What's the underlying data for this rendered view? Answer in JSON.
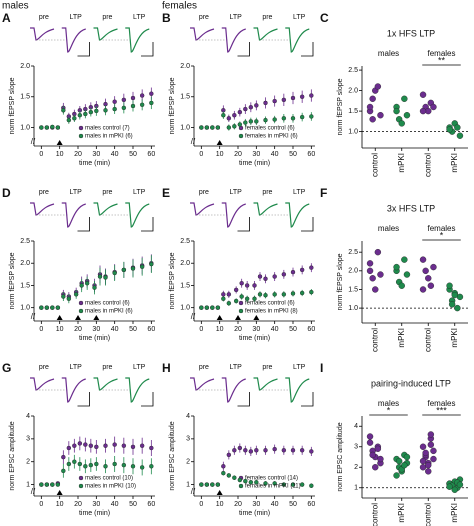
{
  "chart_data": [
    {
      "type": "timecourse",
      "panel": "A",
      "group_label": "males",
      "trace_labels": [
        "pre",
        "LTP",
        "pre",
        "LTP"
      ],
      "xlabel": "time (min)",
      "ylabel": "norm fEPSP slope",
      "xlim": [
        -4,
        62
      ],
      "xticks": [
        0,
        10,
        20,
        30,
        40,
        50,
        60
      ],
      "ylim": [
        0.7,
        2.0
      ],
      "yticks": [
        {
          "value": 1,
          "label": "1.0"
        },
        1.5,
        {
          "value": 2,
          "label": "2.0"
        }
      ],
      "stim_x": [
        10
      ],
      "x": [
        0,
        3,
        6,
        9,
        12,
        15,
        18,
        21,
        24,
        27,
        30,
        35,
        40,
        45,
        50,
        55,
        60
      ],
      "series": [
        {
          "name": "males control (7)",
          "color": "#6b2d8e",
          "values": [
            1.0,
            1.0,
            1.0,
            1.0,
            1.32,
            1.18,
            1.22,
            1.28,
            1.3,
            1.33,
            1.35,
            1.38,
            1.42,
            1.45,
            1.48,
            1.52,
            1.55
          ],
          "errors": [
            0.03,
            0.03,
            0.03,
            0.03,
            0.08,
            0.06,
            0.07,
            0.07,
            0.08,
            0.08,
            0.08,
            0.09,
            0.09,
            0.1,
            0.1,
            0.1,
            0.1
          ]
        },
        {
          "name": "males in mPKI (6)",
          "color": "#1f8a4c",
          "values": [
            1.0,
            1.0,
            1.01,
            1.0,
            1.28,
            1.12,
            1.15,
            1.2,
            1.22,
            1.25,
            1.27,
            1.28,
            1.3,
            1.32,
            1.35,
            1.37,
            1.4
          ],
          "errors": [
            0.03,
            0.03,
            0.03,
            0.03,
            0.07,
            0.06,
            0.06,
            0.07,
            0.07,
            0.07,
            0.08,
            0.08,
            0.08,
            0.09,
            0.09,
            0.09,
            0.1
          ]
        }
      ]
    },
    {
      "type": "timecourse",
      "panel": "B",
      "group_label": "females",
      "trace_labels": [
        "pre",
        "LTP",
        "pre",
        "LTP"
      ],
      "xlabel": "time (min)",
      "ylabel": "norm fEPSP slope",
      "xlim": [
        -4,
        62
      ],
      "xticks": [
        0,
        10,
        20,
        30,
        40,
        50,
        60
      ],
      "ylim": [
        0.7,
        2.0
      ],
      "yticks": [
        {
          "value": 1,
          "label": "1.0"
        },
        1.5,
        {
          "value": 2,
          "label": "2.0"
        }
      ],
      "stim_x": [
        10
      ],
      "x": [
        0,
        3,
        6,
        9,
        12,
        15,
        18,
        21,
        24,
        27,
        30,
        35,
        40,
        45,
        50,
        55,
        60
      ],
      "series": [
        {
          "name": "females control (6)",
          "color": "#6b2d8e",
          "values": [
            1.0,
            1.0,
            1.0,
            1.0,
            1.28,
            1.15,
            1.2,
            1.25,
            1.3,
            1.33,
            1.36,
            1.4,
            1.43,
            1.45,
            1.48,
            1.5,
            1.52
          ],
          "errors": [
            0.03,
            0.03,
            0.03,
            0.03,
            0.08,
            0.06,
            0.07,
            0.07,
            0.08,
            0.08,
            0.08,
            0.09,
            0.09,
            0.1,
            0.1,
            0.1,
            0.1
          ]
        },
        {
          "name": "females in mPKI (6)",
          "color": "#1f8a4c",
          "values": [
            1.0,
            1.0,
            1.0,
            1.0,
            1.2,
            1.0,
            1.02,
            1.05,
            1.08,
            1.1,
            1.1,
            1.12,
            1.13,
            1.15,
            1.15,
            1.17,
            1.18
          ],
          "errors": [
            0.03,
            0.03,
            0.03,
            0.03,
            0.06,
            0.05,
            0.05,
            0.05,
            0.06,
            0.06,
            0.06,
            0.06,
            0.06,
            0.07,
            0.07,
            0.07,
            0.07
          ]
        }
      ]
    },
    {
      "type": "dots",
      "panel": "C",
      "title": "1x HFS LTP",
      "ylabel": "norm fEPSP slope",
      "ylim": [
        0.6,
        2.6
      ],
      "yticks": [
        {
          "value": 1,
          "label": "1.0"
        },
        1.5,
        {
          "value": 2,
          "label": "2.0"
        },
        2.5
      ],
      "reference_line": 1,
      "categories": [
        "control",
        "mPKI",
        "control",
        "mPKI"
      ],
      "colors": [
        "#6b2d8e",
        "#1f8a4c",
        "#6b2d8e",
        "#1f8a4c"
      ],
      "groups": [
        {
          "label": "males"
        },
        {
          "label": "females",
          "significance": "**"
        }
      ],
      "values": [
        [
          1.5,
          1.8,
          2.0,
          2.1,
          1.4,
          1.6,
          1.3
        ],
        [
          1.6,
          1.3,
          1.2,
          1.8,
          1.4,
          1.5
        ],
        [
          1.9,
          1.6,
          1.5,
          1.7,
          1.6,
          1.5
        ],
        [
          1.1,
          1.0,
          1.2,
          1.1,
          0.9,
          1.05
        ]
      ]
    },
    {
      "type": "timecourse",
      "panel": "D",
      "trace_labels": [
        "pre",
        "LTP",
        "pre",
        "LTP"
      ],
      "xlabel": "time (min)",
      "ylabel": "norm fEPSP slope",
      "xlim": [
        -4,
        62
      ],
      "xticks": [
        0,
        10,
        20,
        30,
        40,
        50,
        60
      ],
      "ylim": [
        0.7,
        2.5
      ],
      "yticks": [
        {
          "value": 1,
          "label": "1.0"
        },
        1.5,
        {
          "value": 2,
          "label": "2.0"
        },
        2.5
      ],
      "stim_x": [
        10,
        20,
        30
      ],
      "x": [
        0,
        3,
        6,
        9,
        12,
        15,
        19,
        22,
        25,
        29,
        32,
        35,
        40,
        45,
        50,
        55,
        60
      ],
      "series": [
        {
          "name": "males control (6)",
          "color": "#6b2d8e",
          "values": [
            1.0,
            1.0,
            1.0,
            1.0,
            1.3,
            1.25,
            1.35,
            1.55,
            1.6,
            1.5,
            1.75,
            1.7,
            1.8,
            1.85,
            1.9,
            1.95,
            2.0
          ],
          "errors": [
            0.04,
            0.04,
            0.04,
            0.04,
            0.1,
            0.1,
            0.1,
            0.15,
            0.15,
            0.15,
            0.2,
            0.18,
            0.18,
            0.18,
            0.2,
            0.2,
            0.2
          ]
        },
        {
          "name": "males in mPKI (6)",
          "color": "#1f8a4c",
          "values": [
            1.0,
            1.0,
            1.0,
            1.0,
            1.25,
            1.2,
            1.3,
            1.5,
            1.55,
            1.45,
            1.7,
            1.68,
            1.78,
            1.85,
            1.88,
            1.92,
            1.98
          ],
          "errors": [
            0.04,
            0.04,
            0.04,
            0.04,
            0.1,
            0.1,
            0.1,
            0.15,
            0.15,
            0.15,
            0.2,
            0.18,
            0.18,
            0.18,
            0.2,
            0.2,
            0.2
          ]
        }
      ]
    },
    {
      "type": "timecourse",
      "panel": "E",
      "trace_labels": [
        "pre",
        "LTP",
        "pre",
        "LTP"
      ],
      "xlabel": "time (min)",
      "ylabel": "norm fEPSP slope",
      "xlim": [
        -4,
        62
      ],
      "xticks": [
        0,
        10,
        20,
        30,
        40,
        50,
        60
      ],
      "ylim": [
        0.7,
        2.5
      ],
      "yticks": [
        {
          "value": 1,
          "label": "1.0"
        },
        1.5,
        {
          "value": 2,
          "label": "2.0"
        },
        2.5
      ],
      "stim_x": [
        10,
        20,
        30
      ],
      "x": [
        0,
        3,
        6,
        9,
        12,
        15,
        19,
        22,
        25,
        29,
        32,
        35,
        40,
        45,
        50,
        55,
        60
      ],
      "series": [
        {
          "name": "females control (6)",
          "color": "#6b2d8e",
          "values": [
            1.0,
            1.0,
            1.0,
            1.0,
            1.3,
            1.3,
            1.4,
            1.55,
            1.5,
            1.5,
            1.7,
            1.65,
            1.7,
            1.75,
            1.8,
            1.85,
            1.9
          ],
          "errors": [
            0.03,
            0.03,
            0.03,
            0.03,
            0.08,
            0.08,
            0.08,
            0.1,
            0.1,
            0.1,
            0.1,
            0.1,
            0.1,
            0.1,
            0.1,
            0.1,
            0.1
          ]
        },
        {
          "name": "females in mPKI (8)",
          "color": "#1f8a4c",
          "values": [
            1.0,
            1.0,
            1.0,
            1.0,
            1.2,
            1.1,
            1.15,
            1.25,
            1.2,
            1.2,
            1.3,
            1.28,
            1.3,
            1.3,
            1.32,
            1.33,
            1.35
          ],
          "errors": [
            0.03,
            0.03,
            0.03,
            0.03,
            0.06,
            0.06,
            0.06,
            0.07,
            0.07,
            0.07,
            0.07,
            0.07,
            0.07,
            0.07,
            0.07,
            0.07,
            0.07
          ]
        }
      ]
    },
    {
      "type": "dots",
      "panel": "F",
      "title": "3x HFS LTP",
      "ylabel": "norm fEPSP slope",
      "ylim": [
        0.6,
        2.8
      ],
      "yticks": [
        {
          "value": 1,
          "label": "1.0"
        },
        1.5,
        {
          "value": 2,
          "label": "2.0"
        },
        2.5
      ],
      "reference_line": 1,
      "categories": [
        "control",
        "mPKI",
        "control",
        "mPKI"
      ],
      "colors": [
        "#6b2d8e",
        "#1f8a4c",
        "#6b2d8e",
        "#1f8a4c"
      ],
      "groups": [
        {
          "label": "males"
        },
        {
          "label": "females",
          "significance": "*"
        }
      ],
      "values": [
        [
          2.2,
          1.8,
          1.5,
          2.5,
          1.9,
          2.0
        ],
        [
          2.0,
          1.7,
          1.6,
          2.3,
          1.9,
          2.1
        ],
        [
          2.3,
          2.0,
          1.8,
          1.6,
          2.1,
          1.5
        ],
        [
          1.5,
          1.2,
          1.4,
          1.0,
          1.3,
          1.6,
          1.1,
          1.35
        ]
      ]
    },
    {
      "type": "timecourse",
      "panel": "G",
      "trace_labels": [
        "pre",
        "LTP",
        "pre",
        "LTP"
      ],
      "xlabel": "time (min)",
      "ylabel": "norm EPSC amplitude",
      "xlim": [
        -4,
        62
      ],
      "xticks": [
        0,
        10,
        20,
        30,
        40,
        50,
        60
      ],
      "ylim": [
        0.5,
        4
      ],
      "yticks": [
        1,
        2,
        3,
        4
      ],
      "stim_x": [
        10
      ],
      "x": [
        0,
        3,
        6,
        9,
        12,
        15,
        18,
        21,
        24,
        27,
        30,
        35,
        40,
        45,
        50,
        55,
        60
      ],
      "series": [
        {
          "name": "males control (10)",
          "color": "#6b2d8e",
          "values": [
            1.0,
            1.0,
            1.0,
            1.05,
            2.2,
            2.6,
            2.7,
            2.8,
            2.75,
            2.7,
            2.65,
            2.7,
            2.75,
            2.7,
            2.65,
            2.7,
            2.6
          ],
          "errors": [
            0.05,
            0.05,
            0.05,
            0.05,
            0.3,
            0.3,
            0.3,
            0.3,
            0.3,
            0.3,
            0.3,
            0.3,
            0.35,
            0.35,
            0.35,
            0.35,
            0.35
          ]
        },
        {
          "name": "males in mPKI (10)",
          "color": "#1f8a4c",
          "values": [
            1.0,
            1.0,
            1.0,
            1.0,
            1.6,
            1.9,
            2.0,
            1.9,
            1.8,
            1.85,
            1.9,
            1.8,
            1.9,
            1.85,
            1.8,
            1.75,
            1.8
          ],
          "errors": [
            0.05,
            0.05,
            0.05,
            0.05,
            0.3,
            0.3,
            0.3,
            0.3,
            0.3,
            0.3,
            0.3,
            0.3,
            0.35,
            0.35,
            0.35,
            0.35,
            0.35
          ]
        }
      ]
    },
    {
      "type": "timecourse",
      "panel": "H",
      "trace_labels": [
        "pre",
        "LTP",
        "pre",
        "LTP"
      ],
      "xlabel": "time (min)",
      "ylabel": "norm EPSC amplitude",
      "xlim": [
        -4,
        62
      ],
      "xticks": [
        0,
        10,
        20,
        30,
        40,
        50,
        60
      ],
      "ylim": [
        0.5,
        4
      ],
      "yticks": [
        1,
        2,
        3,
        4
      ],
      "stim_x": [
        10
      ],
      "x": [
        0,
        3,
        6,
        9,
        12,
        15,
        18,
        21,
        24,
        27,
        30,
        35,
        40,
        45,
        50,
        55,
        60
      ],
      "series": [
        {
          "name": "females control (14)",
          "color": "#6b2d8e",
          "values": [
            1.0,
            1.0,
            1.0,
            1.0,
            1.8,
            2.3,
            2.5,
            2.6,
            2.5,
            2.45,
            2.5,
            2.5,
            2.55,
            2.5,
            2.5,
            2.5,
            2.45
          ],
          "errors": [
            0.05,
            0.05,
            0.05,
            0.05,
            0.2,
            0.2,
            0.2,
            0.2,
            0.2,
            0.2,
            0.2,
            0.2,
            0.2,
            0.2,
            0.2,
            0.2,
            0.2
          ]
        },
        {
          "name": "females in mPKI (11)",
          "color": "#1f8a4c",
          "values": [
            1.0,
            1.0,
            1.0,
            1.0,
            1.5,
            1.4,
            1.3,
            1.2,
            1.15,
            1.1,
            1.1,
            1.05,
            1.05,
            1.0,
            1.0,
            1.0,
            0.95
          ],
          "errors": [
            0.05,
            0.05,
            0.05,
            0.05,
            0.1,
            0.1,
            0.1,
            0.1,
            0.1,
            0.1,
            0.1,
            0.1,
            0.1,
            0.1,
            0.1,
            0.1,
            0.1
          ]
        }
      ]
    },
    {
      "type": "dots",
      "panel": "I",
      "title": "pairing-induced LTP",
      "ylabel": "norm EPSC amplitude",
      "ylim": [
        0.5,
        4.5
      ],
      "yticks": [
        1,
        2,
        3,
        4
      ],
      "reference_line": 1,
      "categories": [
        "control",
        "mPKI",
        "control",
        "mPKI"
      ],
      "colors": [
        "#6b2d8e",
        "#1f8a4c",
        "#6b2d8e",
        "#1f8a4c"
      ],
      "groups": [
        {
          "label": "males",
          "significance": "*"
        },
        {
          "label": "females",
          "significance": "***"
        }
      ],
      "values": [
        [
          3.2,
          2.8,
          2.5,
          3.0,
          2.2,
          3.5,
          2.6,
          2.0,
          2.9,
          2.4
        ],
        [
          2.4,
          2.0,
          1.8,
          2.6,
          2.2,
          1.6,
          2.3,
          1.9,
          2.1,
          2.5
        ],
        [
          3.0,
          2.5,
          2.2,
          3.4,
          2.8,
          2.0,
          2.6,
          1.8,
          3.1,
          2.4,
          2.3,
          2.7,
          2.1,
          3.6
        ],
        [
          1.2,
          1.1,
          1.3,
          1.0,
          1.4,
          1.2,
          1.1,
          0.9,
          1.25,
          1.15,
          1.05
        ]
      ]
    }
  ]
}
